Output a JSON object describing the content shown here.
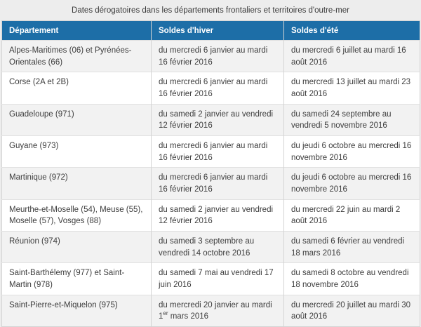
{
  "page": {
    "title": "Dates dérogatoires dans les départements frontaliers et territoires d'outre-mer"
  },
  "colors": {
    "header_bg": "#1d6ea7",
    "row_alt_bg": "#f2f2f2",
    "page_bg": "#ededed"
  },
  "table": {
    "headers": [
      "Département",
      "Soldes d'hiver",
      "Soldes d'été"
    ],
    "rows": [
      {
        "department": "Alpes-Maritimes (06) et Pyrénées-Orientales (66)",
        "winter": "du mercredi 6 janvier au mardi 16 février 2016",
        "summer": "du mercredi 6 juillet au mardi 16 août 2016"
      },
      {
        "department": "Corse (2A et 2B)",
        "winter": "du mercredi 6 janvier au mardi 16 février 2016",
        "summer": "du mercredi 13 juillet au mardi 23 août 2016"
      },
      {
        "department": "Guadeloupe (971)",
        "winter": "du samedi 2 janvier au vendredi 12 février 2016",
        "summer": "du samedi 24 septembre au vendredi 5 novembre 2016"
      },
      {
        "department": "Guyane (973)",
        "winter": "du mercredi 6 janvier au mardi 16 février 2016",
        "summer": "du jeudi 6 octobre au mercredi 16 novembre 2016"
      },
      {
        "department": "Martinique (972)",
        "winter": "du mercredi 6 janvier au mardi 16 février 2016",
        "summer": "du jeudi 6 octobre au mercredi 16 novembre 2016"
      },
      {
        "department": "Meurthe-et-Moselle (54), Meuse (55), Moselle (57), Vosges (88)",
        "winter": "du samedi 2 janvier au vendredi 12 février 2016",
        "summer": "du mercredi 22 juin au mardi 2 août 2016"
      },
      {
        "department": "Réunion (974)",
        "winter": "du samedi 3 septembre au vendredi 14 octobre 2016",
        "summer": "du samedi 6 février au vendredi 18 mars 2016"
      },
      {
        "department": "Saint-Barthélemy (977) et Saint-Martin (978)",
        "winter": "du samedi 7 mai au vendredi 17 juin 2016",
        "summer": "du samedi 8 octobre au vendredi 18 novembre 2016"
      },
      {
        "department": "Saint-Pierre-et-Miquelon (975)",
        "winter_pre": "du mercredi 20 janvier au mardi 1",
        "winter_sup": "er",
        "winter_post": " mars 2016",
        "summer": "du mercredi 20 juillet au mardi 30 août 2016"
      }
    ]
  }
}
